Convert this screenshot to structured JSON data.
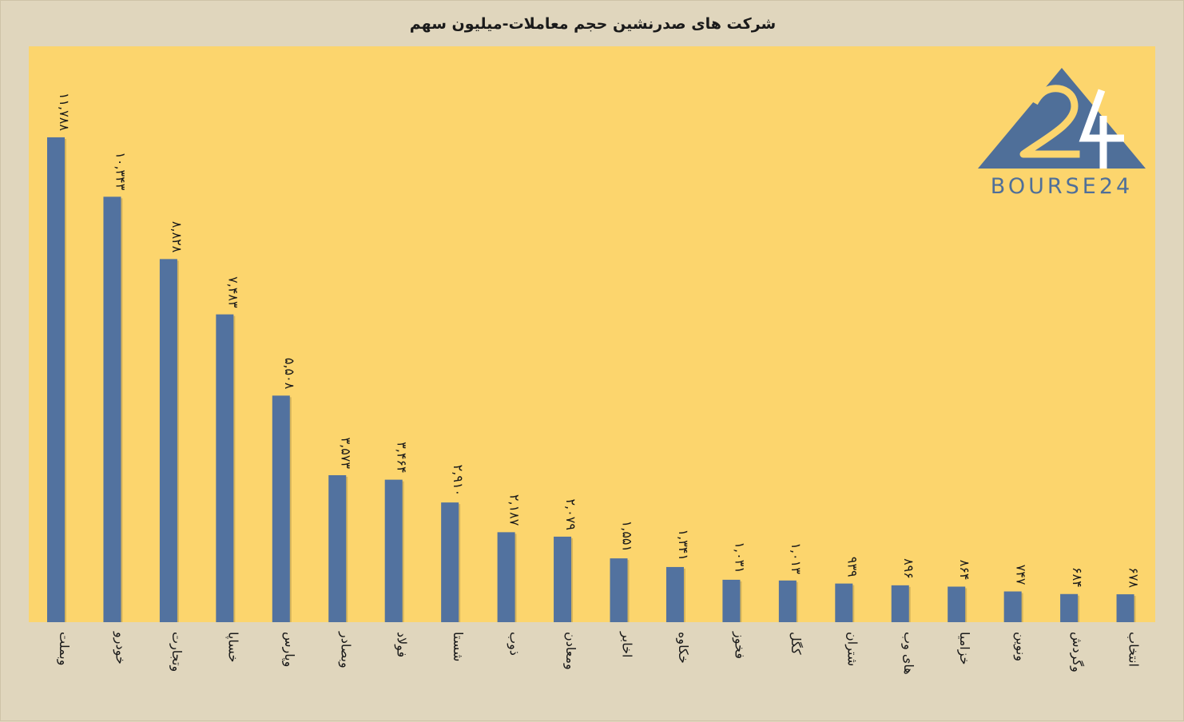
{
  "chart_data": {
    "type": "bar",
    "title": "شرکت های صدرنشین حجم معاملات-میلیون سهم",
    "categories": [
      "وبملت",
      "خودرو",
      "وتجارت",
      "خساپا",
      "وپارس",
      "وبصادر",
      "فولاد",
      "شستا",
      "ذوب",
      "ومعادن",
      "اخابر",
      "خکاوه",
      "فخوز",
      "کگل",
      "شتران",
      "های وب",
      "خزامیا",
      "ونوین",
      "وگردش",
      "انتخاب"
    ],
    "values": [
      11788,
      10343,
      8828,
      7483,
      5508,
      3573,
      3464,
      2910,
      2187,
      2079,
      1551,
      1341,
      1031,
      1013,
      939,
      896,
      864,
      747,
      684,
      678
    ],
    "value_labels": [
      "۱۱,۷۸۸",
      "۱۰,۳۴۳",
      "۸,۸۲۸",
      "۷,۴۸۳",
      "۵,۵۰۸",
      "۳,۵۷۳",
      "۳,۴۶۴",
      "۲,۹۱۰",
      "۲,۱۸۷",
      "۲,۰۷۹",
      "۱,۵۵۱",
      "۱,۳۴۱",
      "۱,۰۳۱",
      "۱,۰۱۳",
      "۹۳۹",
      "۸۹۶",
      "۸۶۴",
      "۷۴۷",
      "۶۸۴",
      "۶۷۸"
    ],
    "ylim": [
      0,
      14000
    ],
    "grid": false,
    "legend": "none"
  },
  "colors": {
    "background": "#e0d6bd",
    "plot_area": "#fcd56d",
    "bar": "#52729f",
    "bar_shadow": "#a88f44",
    "text": "#1a1a1a",
    "logo": "#4f6f99"
  },
  "logo": {
    "text": "BOURSE24",
    "icon": "bourse24-triangle-logo-icon"
  }
}
